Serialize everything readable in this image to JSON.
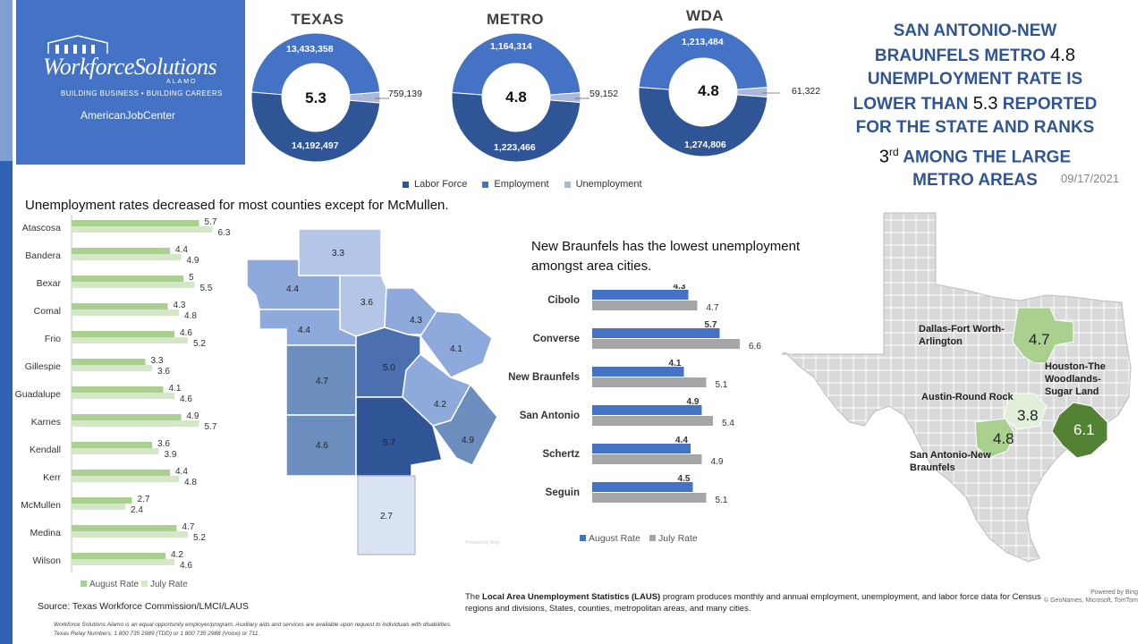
{
  "logo": {
    "name": "WorkforceSolutions",
    "sub": "ALAMO",
    "tagline": "BUILDING BUSINESS • BUILDING CAREERS",
    "ajc": "AmericanJobCenter"
  },
  "colors": {
    "labor_force": "#2f5597",
    "employment": "#4472c4",
    "unemployment": "#a9b8dc",
    "county_august": "#a9d08e",
    "county_july": "#d4e8c8",
    "city_august": "#4472c4",
    "city_july": "#a6a6a6"
  },
  "donuts": [
    {
      "title": "TEXAS",
      "center": "5.3",
      "top": "13,433,358",
      "bottom": "14,192,497",
      "side": "759,139"
    },
    {
      "title": "METRO",
      "center": "4.8",
      "top": "1,164,314",
      "bottom": "1,223,466",
      "side": "59,152"
    },
    {
      "title": "WDA",
      "center": "4.8",
      "top": "1,213,484",
      "bottom": "1,274,806",
      "side": "61,322"
    }
  ],
  "donut_legend": [
    "Labor Force",
    "Employment",
    "Unemployment"
  ],
  "headline": {
    "l1": "SAN ANTONIO-NEW",
    "l2a": "BRAUNFELS METRO ",
    "l2n": "4.8",
    "l3": "UNEMPLOYMENT RATE IS",
    "l4a": "LOWER THAN ",
    "l4n": "5.3",
    "l4b": " REPORTED",
    "l5": "FOR THE STATE AND RANKS",
    "l6n": "3",
    "l6sup": "rd",
    "l6b": " AMONG THE LARGE",
    "l7": "METRO AREAS"
  },
  "date": "09/17/2021",
  "county_title": "Unemployment rates decreased for most counties except for McMullen.",
  "city_title": "New Braunfels has the lowest unemployment amongst area cities.",
  "chart_data": [
    {
      "type": "bar",
      "orientation": "horizontal",
      "categories": [
        "Atascosa",
        "Bandera",
        "Bexar",
        "Comal",
        "Frio",
        "Gillespie",
        "Guadalupe",
        "Karnes",
        "Kendall",
        "Kerr",
        "McMullen",
        "Medina",
        "Wilson"
      ],
      "series": [
        {
          "name": "August Rate",
          "values": [
            5.7,
            4.4,
            5,
            4.3,
            4.6,
            3.3,
            4.1,
            4.9,
            3.6,
            4.4,
            2.7,
            4.7,
            4.2
          ]
        },
        {
          "name": "July Rate",
          "values": [
            6.3,
            4.9,
            5.5,
            4.8,
            5.2,
            3.6,
            4.6,
            5.7,
            3.9,
            4.8,
            2.4,
            5.2,
            4.6
          ]
        }
      ],
      "value_labels": {
        "aug": [
          "5.7",
          "4.4",
          "5",
          "4.3",
          "4.6",
          "3.3",
          "4.1",
          "4.9",
          "3.6",
          "4.4",
          "2.7",
          "4.7",
          "4.2"
        ],
        "jul": [
          "6.3",
          "4.9",
          "5.5",
          "4.8",
          "5.2",
          "3.6",
          "4.6",
          "5.7",
          "3.9",
          "4.8",
          "2.4",
          "5.2",
          "4.6"
        ]
      },
      "title": "Unemployment rates decreased for most counties except for McMullen.",
      "legend": "bottom"
    },
    {
      "type": "bar",
      "orientation": "horizontal",
      "categories": [
        "Cibolo",
        "Converse",
        "New Braunfels",
        "San Antonio",
        "Schertz",
        "Seguin"
      ],
      "series": [
        {
          "name": "August Rate",
          "values": [
            4.3,
            5.7,
            4.1,
            4.9,
            4.4,
            4.5
          ]
        },
        {
          "name": "July Rate",
          "values": [
            4.7,
            6.6,
            5.1,
            5.4,
            4.9,
            5.1
          ]
        }
      ],
      "value_labels": {
        "aug": [
          "4.3",
          "5.7",
          "4.1",
          "4.9",
          "4.4",
          "4.5"
        ],
        "jul": [
          "4.7",
          "6.6",
          "5.1",
          "5.4",
          "4.9",
          "5.1"
        ]
      },
      "title": "New Braunfels has the lowest unemployment amongst area cities.",
      "legend": "bottom"
    },
    {
      "type": "pie",
      "title": "TEXAS",
      "labels": [
        "Labor Force",
        "Employment",
        "Unemployment"
      ],
      "values": [
        14192497,
        13433358,
        759139
      ],
      "center_label": "5.3"
    },
    {
      "type": "pie",
      "title": "METRO",
      "labels": [
        "Labor Force",
        "Employment",
        "Unemployment"
      ],
      "values": [
        1223466,
        1164314,
        59152
      ],
      "center_label": "4.8"
    },
    {
      "type": "pie",
      "title": "WDA",
      "labels": [
        "Labor Force",
        "Employment",
        "Unemployment"
      ],
      "values": [
        1274806,
        1213484,
        61322
      ],
      "center_label": "4.8"
    }
  ],
  "legend_labels": {
    "aug": "August Rate",
    "jul": "July Rate"
  },
  "county_map_values": [
    "3.3",
    "4.4",
    "3.6",
    "4.3",
    "4.1",
    "4.4",
    "4.7",
    "5.0",
    "4.2",
    "4.9",
    "4.6",
    "5.7",
    "2.7"
  ],
  "metro_map": {
    "labels": [
      "Dallas-Fort Worth-\nArlington",
      "Houston-The\nWoodlands-\nSugar Land",
      "Austin-Round Rock",
      "San Antonio-New\nBraunfels"
    ],
    "dfw": "Dallas-Fort  Worth-",
    "dfw2": "Arlington",
    "hou1": "Houston-The",
    "hou2": "Woodlands-",
    "hou3": "Sugar Land",
    "aus": "Austin-Round Rock",
    "sa1": "San Antonio-New",
    "sa2": "Braunfels",
    "values": {
      "dfw": "4.7",
      "hou": "6.1",
      "aus": "3.8",
      "sa": "4.8"
    }
  },
  "source": "Source: Texas Workforce Commission/LMCI/LAUS",
  "disclaimer1": "Workforce Solutions Alamo is an equal opportunity employer/program. Auxiliary aids and services are available upon request to individuals with disabilities.",
  "disclaimer2": "Texas Relay Numbers: 1 800 735 2989  (TDD) or 1 800 735 2988 (Voice) or 711.",
  "laus": {
    "pre": "The ",
    "bold": "Local Area Unemployment Statistics (LAUS)",
    "post": " program produces monthly and annual employment, unemployment, and labor force data for Census regions and divisions, States, counties, metropolitan areas, and many cities."
  },
  "bing": {
    "l1": "Powered by Bing",
    "l2": "© GeoNames, Microsoft, TomTom"
  }
}
